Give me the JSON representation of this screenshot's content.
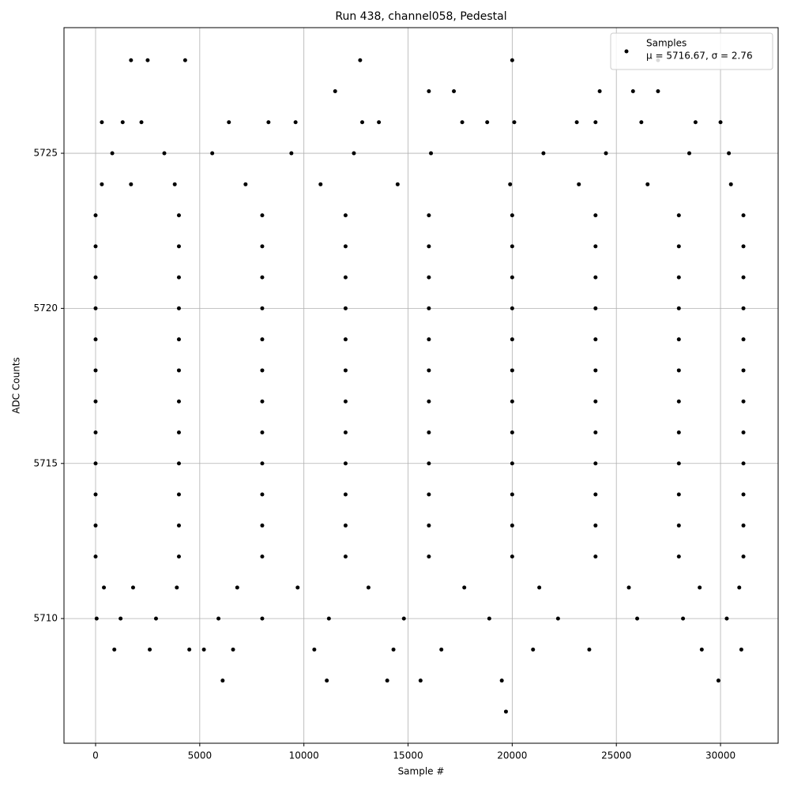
{
  "chart_data": {
    "type": "scatter",
    "title": "Run 438, channel058, Pedestal",
    "x_label": "Sample #",
    "y_label": "ADC Counts",
    "xlim": [
      -1517,
      32767
    ],
    "ylim": [
      5705.98,
      5729.05
    ],
    "xticks": [
      0,
      5000,
      10000,
      15000,
      20000,
      25000,
      30000
    ],
    "yticks": [
      5710,
      5715,
      5720,
      5725
    ],
    "grid": true,
    "legend_position": "upper right",
    "legend_stats": "μ = 5716.67, σ = 2.76",
    "x": [
      0,
      4000,
      8000,
      12000,
      16000,
      20000,
      24000,
      28000,
      31100,
      0,
      4000,
      8000,
      12000,
      16000,
      20000,
      24000,
      28000,
      31100,
      0,
      4000,
      8000,
      12000,
      16000,
      20000,
      24000,
      28000,
      31100,
      0,
      4000,
      8000,
      12000,
      16000,
      20000,
      24000,
      28000,
      31100,
      0,
      4000,
      8000,
      12000,
      16000,
      20000,
      24000,
      28000,
      31100,
      0,
      4000,
      8000,
      12000,
      16000,
      20000,
      24000,
      28000,
      31100,
      0,
      4000,
      8000,
      12000,
      16000,
      20000,
      24000,
      28000,
      31100,
      0,
      4000,
      8000,
      12000,
      16000,
      20000,
      24000,
      28000,
      31100,
      0,
      4000,
      8000,
      12000,
      16000,
      20000,
      24000,
      28000,
      31100,
      0,
      4000,
      8000,
      12000,
      16000,
      20000,
      24000,
      28000,
      31100,
      0,
      4000,
      8000,
      12000,
      16000,
      20000,
      24000,
      28000,
      31100,
      0,
      4000,
      8000,
      12000,
      16000,
      20000,
      24000,
      28000,
      31100,
      300,
      1700,
      3800,
      7200,
      10800,
      14500,
      19900,
      23200,
      26500,
      30500,
      800,
      3300,
      5600,
      9400,
      12400,
      16100,
      21500,
      24500,
      28500,
      30400,
      400,
      1800,
      3900,
      6800,
      9700,
      13100,
      17700,
      21300,
      25600,
      29000,
      30900,
      50,
      1200,
      2900,
      5900,
      8000,
      11200,
      14800,
      18900,
      22200,
      26000,
      28200,
      30300,
      900,
      2600,
      4500,
      5200,
      6600,
      10500,
      14300,
      16600,
      21000,
      23700,
      29100,
      31000,
      6100,
      11100,
      14000,
      15600,
      19500,
      29900,
      19700,
      300,
      1300,
      2200,
      6400,
      8300,
      9600,
      12800,
      13600,
      17600,
      18800,
      20100,
      23100,
      24000,
      26200,
      28800,
      30000,
      11500,
      16000,
      17200,
      24200,
      25800,
      27000,
      1700,
      2500,
      4300,
      12700,
      20000,
      27000
    ],
    "series": [
      {
        "name": "Samples",
        "color": "#000000",
        "values": [
          5723,
          5723,
          5723,
          5723,
          5723,
          5723,
          5723,
          5723,
          5723,
          5722,
          5722,
          5722,
          5722,
          5722,
          5722,
          5722,
          5722,
          5722,
          5721,
          5721,
          5721,
          5721,
          5721,
          5721,
          5721,
          5721,
          5721,
          5720,
          5720,
          5720,
          5720,
          5720,
          5720,
          5720,
          5720,
          5720,
          5719,
          5719,
          5719,
          5719,
          5719,
          5719,
          5719,
          5719,
          5719,
          5718,
          5718,
          5718,
          5718,
          5718,
          5718,
          5718,
          5718,
          5718,
          5717,
          5717,
          5717,
          5717,
          5717,
          5717,
          5717,
          5717,
          5717,
          5716,
          5716,
          5716,
          5716,
          5716,
          5716,
          5716,
          5716,
          5716,
          5715,
          5715,
          5715,
          5715,
          5715,
          5715,
          5715,
          5715,
          5715,
          5714,
          5714,
          5714,
          5714,
          5714,
          5714,
          5714,
          5714,
          5714,
          5713,
          5713,
          5713,
          5713,
          5713,
          5713,
          5713,
          5713,
          5713,
          5712,
          5712,
          5712,
          5712,
          5712,
          5712,
          5712,
          5712,
          5712,
          5724,
          5724,
          5724,
          5724,
          5724,
          5724,
          5724,
          5724,
          5724,
          5724,
          5725,
          5725,
          5725,
          5725,
          5725,
          5725,
          5725,
          5725,
          5725,
          5725,
          5711,
          5711,
          5711,
          5711,
          5711,
          5711,
          5711,
          5711,
          5711,
          5711,
          5711,
          5710,
          5710,
          5710,
          5710,
          5710,
          5710,
          5710,
          5710,
          5710,
          5710,
          5710,
          5710,
          5709,
          5709,
          5709,
          5709,
          5709,
          5709,
          5709,
          5709,
          5709,
          5709,
          5709,
          5709,
          5708,
          5708,
          5708,
          5708,
          5708,
          5708,
          5707,
          5726,
          5726,
          5726,
          5726,
          5726,
          5726,
          5726,
          5726,
          5726,
          5726,
          5726,
          5726,
          5726,
          5726,
          5726,
          5726,
          5727,
          5727,
          5727,
          5727,
          5727,
          5727,
          5728,
          5728,
          5728,
          5728,
          5728,
          5728
        ]
      }
    ]
  }
}
